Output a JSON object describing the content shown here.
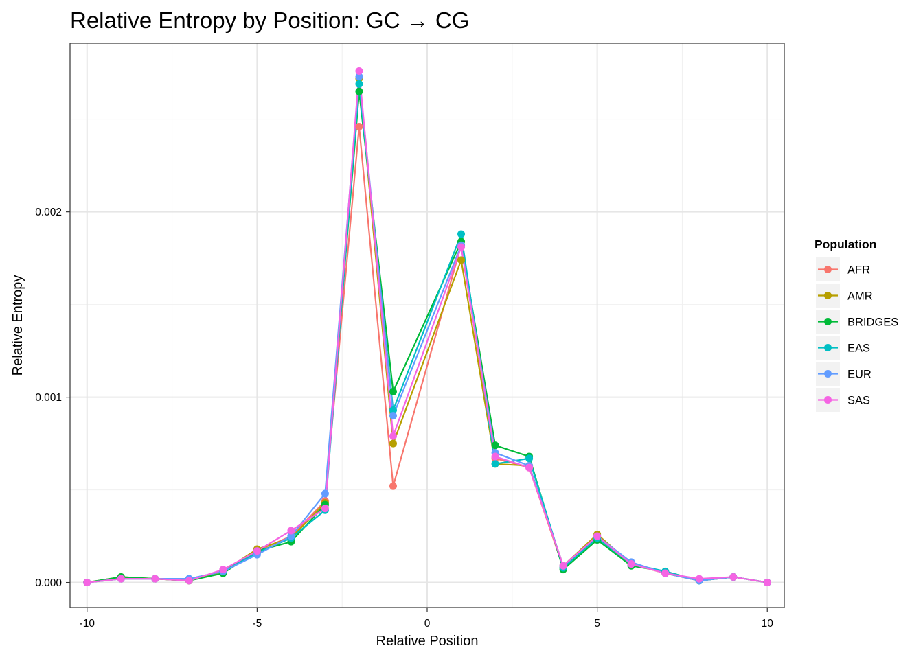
{
  "chart_data": {
    "type": "line",
    "title": "Relative Entropy by Position: GC → CG",
    "xlabel": "Relative Position",
    "ylabel": "Relative Entropy",
    "xlim": [
      -10.5,
      10.5
    ],
    "ylim": [
      -0.000135,
      0.00291
    ],
    "x_ticks": [
      -10,
      -5,
      0,
      5,
      10
    ],
    "x_tick_labels": [
      "-10",
      "-5",
      "0",
      "5",
      "10"
    ],
    "y_ticks": [
      0,
      0.001,
      0.002
    ],
    "y_tick_labels": [
      "0.000",
      "0.001",
      "0.002"
    ],
    "grid": true,
    "legend_title": "Population",
    "legend_position": "right",
    "x": [
      -10,
      -9,
      -8,
      -7,
      -6,
      -5,
      -4,
      -3,
      -2,
      -1,
      1,
      2,
      3,
      4,
      5,
      6,
      7,
      8,
      9,
      10
    ],
    "series": [
      {
        "name": "AFR",
        "color": "#F8766D",
        "values": [
          0,
          2e-05,
          2e-05,
          1e-05,
          6e-05,
          0.00017,
          0.00025,
          0.00044,
          0.00246,
          0.00052,
          0.00182,
          0.00067,
          0.00062,
          8e-05,
          0.00025,
          0.0001,
          5e-05,
          1e-05,
          3e-05,
          0
        ]
      },
      {
        "name": "AMR",
        "color": "#B79F00",
        "values": [
          0,
          3e-05,
          2e-05,
          1e-05,
          6e-05,
          0.00018,
          0.00024,
          0.00043,
          0.00272,
          0.00075,
          0.00174,
          0.00064,
          0.00063,
          9e-05,
          0.00026,
          0.0001,
          5e-05,
          1e-05,
          3e-05,
          0
        ]
      },
      {
        "name": "BRIDGES",
        "color": "#00BA38",
        "values": [
          0,
          3e-05,
          2e-05,
          1e-05,
          5e-05,
          0.00017,
          0.00022,
          0.00042,
          0.00265,
          0.00103,
          0.00184,
          0.00074,
          0.00068,
          7e-05,
          0.00023,
          9e-05,
          6e-05,
          1e-05,
          3e-05,
          0
        ]
      },
      {
        "name": "EAS",
        "color": "#00BFC4",
        "values": [
          0,
          2e-05,
          2e-05,
          2e-05,
          6e-05,
          0.00016,
          0.00024,
          0.00039,
          0.00269,
          0.00093,
          0.00188,
          0.00064,
          0.00067,
          8e-05,
          0.00024,
          0.0001,
          6e-05,
          1e-05,
          3e-05,
          0
        ]
      },
      {
        "name": "EUR",
        "color": "#619CFF",
        "values": [
          0,
          2e-05,
          2e-05,
          2e-05,
          6e-05,
          0.00015,
          0.00025,
          0.00048,
          0.00273,
          0.0009,
          0.00182,
          0.0007,
          0.00063,
          9e-05,
          0.00025,
          0.00011,
          5e-05,
          1e-05,
          3e-05,
          0
        ]
      },
      {
        "name": "SAS",
        "color": "#F564E3",
        "values": [
          0,
          2e-05,
          2e-05,
          1e-05,
          7e-05,
          0.00017,
          0.00028,
          0.0004,
          0.00276,
          0.00079,
          0.00181,
          0.00068,
          0.00062,
          9e-05,
          0.00025,
          0.0001,
          5e-05,
          2e-05,
          3e-05,
          0
        ]
      }
    ]
  }
}
